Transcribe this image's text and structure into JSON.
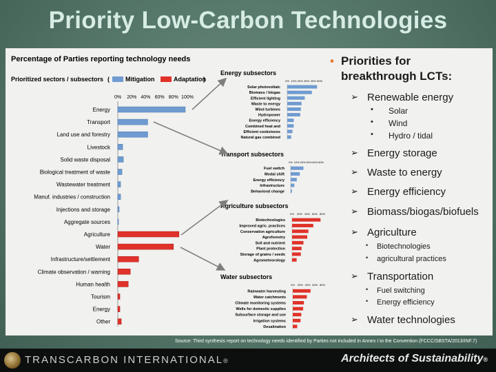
{
  "slide": {
    "title": "Priority Low-Carbon Technologies",
    "source": "Source: Third synthesis report on technology needs identified by Parties not included in Annex I to the Convention (FCCC/SBSTA/2013/INF.7)",
    "footer_brand": "TRANSCARBON INTERNATIONAL",
    "footer_brand_mark": "®",
    "footer_tagline": "Architects of Sustainability",
    "footer_tagline_mark": "®"
  },
  "bullets": {
    "heading": "Priorities for breakthrough LCTs:",
    "heading_line1": "Priorities for",
    "heading_line2": "breakthrough LCTs:",
    "renewable": "Renewable energy",
    "renewable_items": [
      "Solar",
      "Wind",
      "Hydro / tidal"
    ],
    "storage": "Energy storage",
    "waste": "Waste to energy",
    "efficiency": "Energy efficiency",
    "biomass": "Biomass/biogas/biofuels",
    "agriculture": "Agriculture",
    "agriculture_items": [
      "Biotechnologies",
      "agricultural practices"
    ],
    "transportation": "Transportation",
    "transportation_items": [
      "Fuel switching",
      "Energy efficiency"
    ],
    "water": "Water technologies"
  },
  "colors": {
    "mitigation": "#6f9bd1",
    "adaptation": "#e0322a",
    "arrow": "#7f7f7f",
    "bullet_orange": "#e37b2e"
  },
  "chart_data": [
    {
      "type": "bar",
      "title": "Percentage of Parties reporting technology needs",
      "category_header": "Prioritized sectors / subsectors",
      "legend": [
        "Mitigation",
        "Adaptation"
      ],
      "legend_prefix": "(",
      "legend_suffix": ")",
      "xlim": [
        0,
        100
      ],
      "ticks": [
        "0%",
        "20%",
        "40%",
        "60%",
        "80%",
        "100%"
      ],
      "categories": [
        "Energy",
        "Transport",
        "Land use and forestry",
        "Livestock",
        "Solid waste disposal",
        "Biological treatment of waste",
        "Wastewater treatment",
        "Manuf. industries / construction",
        "Injections and storage",
        "Aggregate sources",
        "Agriculture",
        "Water",
        "Infrastructure/settlement",
        "Climate observation / warning",
        "Human health",
        "Tourism",
        "Energy",
        "Other"
      ],
      "series": [
        {
          "name": "Mitigation",
          "values": [
            97,
            43,
            43,
            7,
            8,
            6,
            4,
            4,
            2,
            1,
            0,
            0,
            0,
            0,
            0,
            0,
            0,
            0
          ]
        },
        {
          "name": "Adaptation",
          "values": [
            0,
            0,
            0,
            0,
            0,
            0,
            0,
            0,
            0,
            0,
            88,
            80,
            30,
            18,
            15,
            3,
            3,
            5
          ]
        }
      ]
    },
    {
      "type": "bar",
      "title": "Energy subsectors",
      "ticks": [
        "0%",
        "10%",
        "20%",
        "30%",
        "40%",
        "50%"
      ],
      "xlim": [
        0,
        50
      ],
      "categories": [
        "Solar photovoltaic",
        "Biomass / biogas",
        "Efficient lighting",
        "Waste to energy",
        "Wind turbines",
        "Hydropower",
        "Energy efficiency",
        "Combined heat and",
        "Efficient cookstoves",
        "Natural gas combined"
      ],
      "values": [
        46,
        38,
        27,
        22,
        21,
        20,
        10,
        10,
        8,
        6
      ]
    },
    {
      "type": "bar",
      "title": "Transport subsectors",
      "ticks": [
        "0%",
        "10%",
        "20%",
        "30%",
        "40%",
        "50%"
      ],
      "xlim": [
        0,
        50
      ],
      "categories": [
        "Fuel switch",
        "Modal shift",
        "Energy efficiency",
        "Infrastructure",
        "Behavioral change"
      ],
      "values": [
        21,
        15,
        10,
        6,
        2
      ]
    },
    {
      "type": "bar",
      "title": "Agriculture subsectors",
      "ticks": [
        "0%",
        "20%",
        "40%",
        "60%",
        "80%"
      ],
      "xlim": [
        0,
        80
      ],
      "categories": [
        "Biotechnologies",
        "Improved agric. practices",
        "Conservation agriculture",
        "Agroforestry",
        "Soil and nutrient",
        "Plant protection",
        "Storage of grains / seeds",
        "Agrometeorology"
      ],
      "values": [
        75,
        56,
        43,
        40,
        30,
        25,
        23,
        12
      ]
    },
    {
      "type": "bar",
      "title": "Water subsectors",
      "ticks": [
        "0%",
        "20%",
        "40%",
        "60%",
        "80%"
      ],
      "xlim": [
        0,
        80
      ],
      "categories": [
        "Rainwater harvesting",
        "Water catchments",
        "Climate monitoring systems",
        "Wells for domestic supplies",
        "Subsurface storage and use",
        "Irrigation systems",
        "Desalination"
      ],
      "values": [
        48,
        38,
        30,
        28,
        23,
        21,
        12
      ]
    }
  ]
}
